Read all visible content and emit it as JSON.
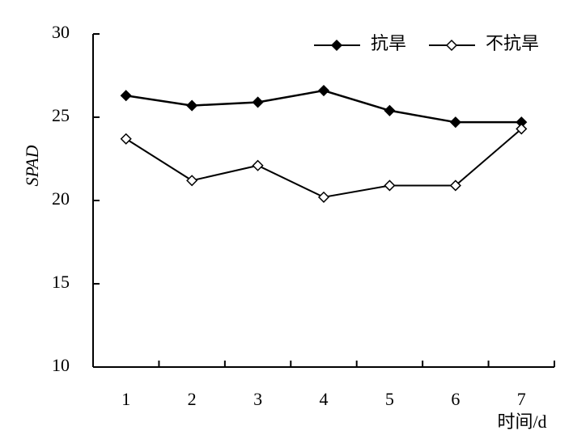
{
  "chart_data": {
    "type": "line",
    "categories": [
      "1",
      "2",
      "3",
      "4",
      "5",
      "6",
      "7"
    ],
    "series": [
      {
        "name": "抗旱",
        "color": "#000000",
        "marker": "filled-diamond",
        "values": [
          26.3,
          25.7,
          25.9,
          26.6,
          25.4,
          24.7,
          24.7
        ]
      },
      {
        "name": "不抗旱",
        "color": "#000000",
        "marker": "open-diamond",
        "values": [
          23.7,
          21.2,
          22.1,
          20.2,
          20.9,
          20.9,
          24.3
        ]
      }
    ],
    "y_label": "SPAD",
    "x_label": "时间/d",
    "ylim": [
      10,
      30
    ],
    "yticks": [
      10,
      15,
      20,
      25,
      30
    ],
    "legend": "top-right",
    "grid": false
  }
}
